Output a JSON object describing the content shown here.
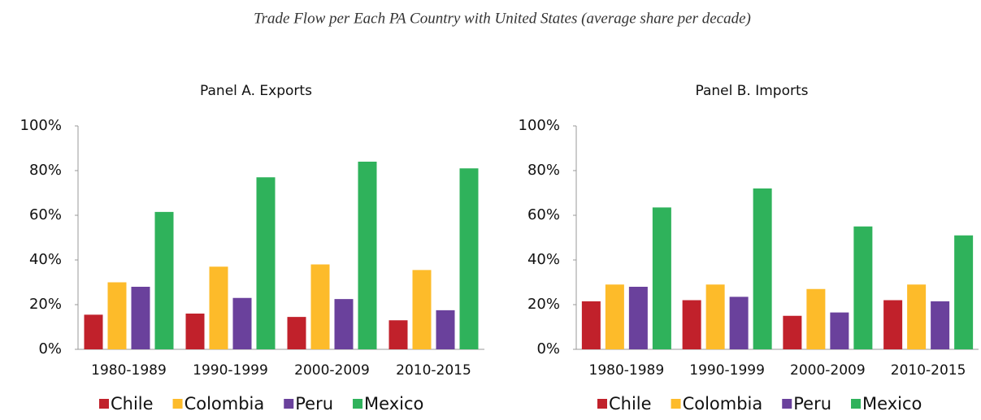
{
  "title": "Trade Flow per Each PA Country with United States (average share per decade)",
  "chart_data": [
    {
      "type": "bar",
      "title": "Panel A. Exports",
      "categories": [
        "1980-1989",
        "1990-1999",
        "2000-2009",
        "2010-2015"
      ],
      "series": [
        {
          "name": "Chile",
          "color": "#c1212b",
          "values": [
            15.5,
            16,
            14.5,
            13
          ]
        },
        {
          "name": "Colombia",
          "color": "#fdbb2a",
          "values": [
            30,
            37,
            38,
            35.5
          ]
        },
        {
          "name": "Peru",
          "color": "#6a419c",
          "values": [
            28,
            23,
            22.5,
            17.5
          ]
        },
        {
          "name": "Mexico",
          "color": "#2fb25b",
          "values": [
            61.5,
            77,
            84,
            81
          ]
        }
      ],
      "ylim": [
        0,
        100
      ],
      "yticks": [
        {
          "value": 0,
          "label": "0%"
        },
        {
          "value": 20,
          "label": "20%"
        },
        {
          "value": 40,
          "label": "40%"
        },
        {
          "value": 60,
          "label": "60%"
        },
        {
          "value": 80,
          "label": "80%"
        },
        {
          "value": 100,
          "label": "100%"
        }
      ],
      "grid": false,
      "legend": "bottom"
    },
    {
      "type": "bar",
      "title": "Panel B. Imports",
      "categories": [
        "1980-1989",
        "1990-1999",
        "2000-2009",
        "2010-2015"
      ],
      "series": [
        {
          "name": "Chile",
          "color": "#c1212b",
          "values": [
            21.5,
            22,
            15,
            22
          ]
        },
        {
          "name": "Colombia",
          "color": "#fdbb2a",
          "values": [
            29,
            29,
            27,
            29
          ]
        },
        {
          "name": "Peru",
          "color": "#6a419c",
          "values": [
            28,
            23.5,
            16.5,
            21.5
          ]
        },
        {
          "name": "Mexico",
          "color": "#2fb25b",
          "values": [
            63.5,
            72,
            55,
            51
          ]
        }
      ],
      "ylim": [
        0,
        100
      ],
      "yticks": [
        {
          "value": 0,
          "label": "0%"
        },
        {
          "value": 20,
          "label": "20%"
        },
        {
          "value": 40,
          "label": "40%"
        },
        {
          "value": 60,
          "label": "60%"
        },
        {
          "value": 80,
          "label": "80%"
        },
        {
          "value": 100,
          "label": "100%"
        }
      ],
      "grid": false,
      "legend": "bottom"
    }
  ]
}
